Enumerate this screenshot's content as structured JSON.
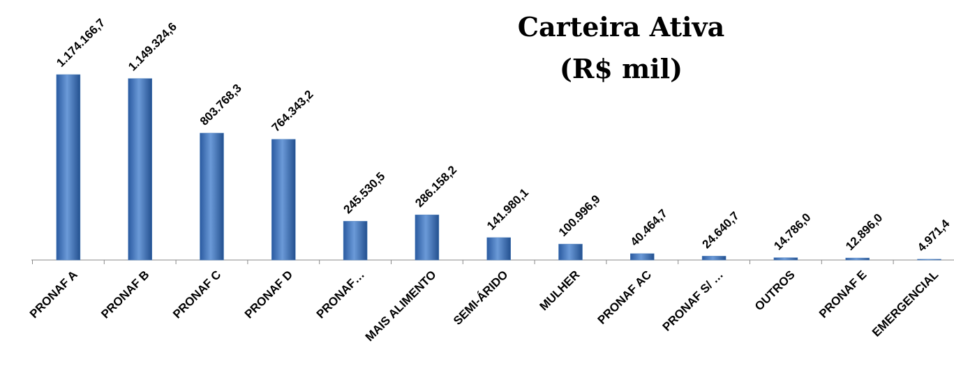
{
  "chart_data": {
    "type": "bar",
    "title": "Carteira Ativa",
    "subtitle": "(R$ mil)",
    "categories": [
      "PRONAF A",
      "PRONAF B",
      "PRONAF C",
      "PRONAF D",
      "PRONAF…",
      "MAIS ALIMENTO",
      "SEMI-ÁRIDO",
      "MULHER",
      "PRONAF AC",
      "PRONAF S/ …",
      "OUTROS",
      "PRONAF E",
      "EMERGENCIAL"
    ],
    "values": [
      1174166.7,
      1149324.6,
      803768.3,
      764343.2,
      245530.5,
      286158.2,
      141980.1,
      100996.9,
      40464.7,
      24640.7,
      14786.0,
      12896.0,
      4971.4
    ],
    "value_labels": [
      "1.174.166,7",
      "1.149.324,6",
      "803.768,3",
      "764.343,2",
      "245.530,5",
      "286.158,2",
      "141.980,1",
      "100.996,9",
      "40.464,7",
      "24.640,7",
      "14.786,0",
      "12.896,0",
      "4.971,4"
    ],
    "color": "#4f81bd"
  }
}
